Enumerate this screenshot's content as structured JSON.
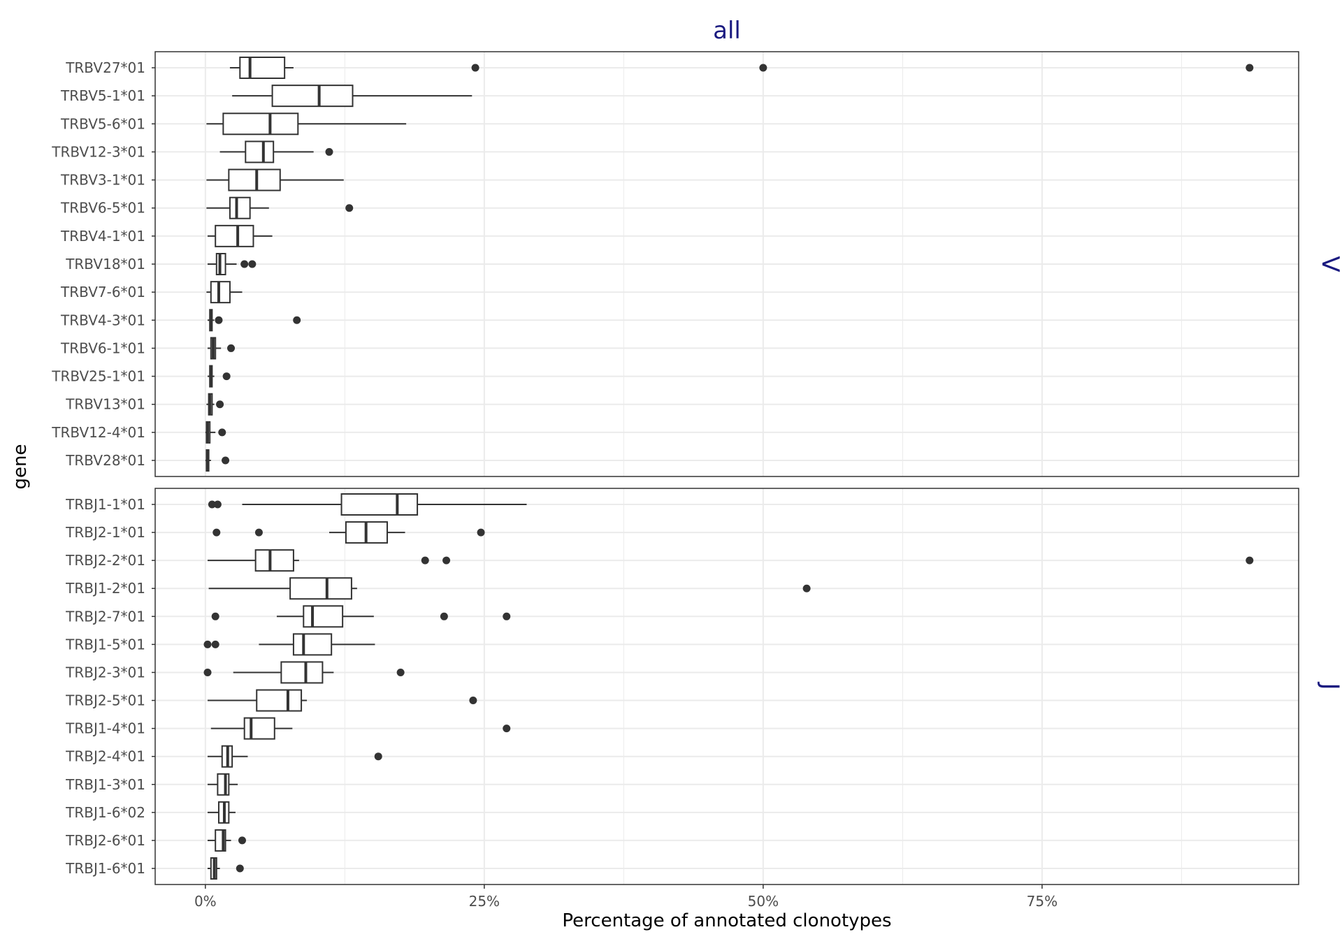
{
  "chart_data": {
    "type": "boxplot",
    "title": "all",
    "xlabel": "Percentage of annotated clonotypes",
    "ylabel": "gene",
    "xlim": [
      -4.5,
      98
    ],
    "x_ticks": [
      0,
      25,
      50,
      75
    ],
    "x_tick_labels": [
      "0%",
      "25%",
      "50%",
      "75%"
    ],
    "x_minor_ticks": [
      12.5,
      37.5,
      62.5,
      87.5
    ],
    "grid": true,
    "colors": {
      "box_stroke": "#333333",
      "grid": "#ebebeb",
      "panel_border": "#333333",
      "strip_text": "#1a1a80",
      "tick_text": "#4d4d4d"
    },
    "panels": [
      {
        "name": "V",
        "strip_label": "V",
        "genes": [
          {
            "gene": "TRBV27*01",
            "min": 2.2,
            "q1": 3.1,
            "median": 4.0,
            "q3": 7.1,
            "max": 7.9,
            "outliers": [
              24.2,
              50.0,
              93.6
            ]
          },
          {
            "gene": "TRBV5-1*01",
            "min": 2.4,
            "q1": 6.0,
            "median": 10.2,
            "q3": 13.2,
            "max": 23.9,
            "outliers": []
          },
          {
            "gene": "TRBV5-6*01",
            "min": 0.1,
            "q1": 1.6,
            "median": 5.8,
            "q3": 8.3,
            "max": 18.0,
            "outliers": []
          },
          {
            "gene": "TRBV12-3*01",
            "min": 1.3,
            "q1": 3.6,
            "median": 5.2,
            "q3": 6.1,
            "max": 9.7,
            "outliers": [
              11.1
            ]
          },
          {
            "gene": "TRBV3-1*01",
            "min": 0.1,
            "q1": 2.1,
            "median": 4.6,
            "q3": 6.7,
            "max": 12.4,
            "outliers": []
          },
          {
            "gene": "TRBV6-5*01",
            "min": 0.1,
            "q1": 2.2,
            "median": 2.8,
            "q3": 4.0,
            "max": 5.7,
            "outliers": [
              12.9
            ]
          },
          {
            "gene": "TRBV4-1*01",
            "min": 0.2,
            "q1": 0.9,
            "median": 2.9,
            "q3": 4.3,
            "max": 6.0,
            "outliers": []
          },
          {
            "gene": "TRBV18*01",
            "min": 0.2,
            "q1": 1.0,
            "median": 1.3,
            "q3": 1.8,
            "max": 2.8,
            "outliers": [
              3.5,
              4.2
            ]
          },
          {
            "gene": "TRBV7-6*01",
            "min": 0.1,
            "q1": 0.5,
            "median": 1.2,
            "q3": 2.2,
            "max": 3.3,
            "outliers": []
          },
          {
            "gene": "TRBV4-3*01",
            "min": 0.2,
            "q1": 0.4,
            "median": 0.5,
            "q3": 0.6,
            "max": 0.8,
            "outliers": [
              1.2,
              8.2
            ]
          },
          {
            "gene": "TRBV6-1*01",
            "min": 0.2,
            "q1": 0.5,
            "median": 0.7,
            "q3": 0.9,
            "max": 1.4,
            "outliers": [
              2.3
            ]
          },
          {
            "gene": "TRBV25-1*01",
            "min": 0.2,
            "q1": 0.4,
            "median": 0.5,
            "q3": 0.6,
            "max": 0.8,
            "outliers": [
              1.9
            ]
          },
          {
            "gene": "TRBV13*01",
            "min": 0.1,
            "q1": 0.3,
            "median": 0.4,
            "q3": 0.6,
            "max": 0.8,
            "outliers": [
              1.3
            ]
          },
          {
            "gene": "TRBV12-4*01",
            "min": 0.0,
            "q1": 0.1,
            "median": 0.2,
            "q3": 0.4,
            "max": 0.9,
            "outliers": [
              1.5
            ]
          },
          {
            "gene": "TRBV28*01",
            "min": 0.0,
            "q1": 0.1,
            "median": 0.2,
            "q3": 0.3,
            "max": 0.5,
            "outliers": [
              1.8
            ]
          }
        ]
      },
      {
        "name": "J",
        "strip_label": "J",
        "genes": [
          {
            "gene": "TRBJ1-1*01",
            "min": 3.3,
            "q1": 12.2,
            "median": 17.2,
            "q3": 19.0,
            "max": 28.8,
            "outliers": [
              0.6,
              1.1
            ]
          },
          {
            "gene": "TRBJ2-1*01",
            "min": 11.1,
            "q1": 12.6,
            "median": 14.4,
            "q3": 16.3,
            "max": 17.9,
            "outliers": [
              1.0,
              4.8,
              24.7
            ]
          },
          {
            "gene": "TRBJ2-2*01",
            "min": 0.2,
            "q1": 4.5,
            "median": 5.8,
            "q3": 7.9,
            "max": 8.4,
            "outliers": [
              19.7,
              21.6,
              93.6
            ]
          },
          {
            "gene": "TRBJ1-2*01",
            "min": 0.3,
            "q1": 7.6,
            "median": 10.9,
            "q3": 13.1,
            "max": 13.6,
            "outliers": [
              53.9
            ]
          },
          {
            "gene": "TRBJ2-7*01",
            "min": 6.4,
            "q1": 8.8,
            "median": 9.6,
            "q3": 12.3,
            "max": 15.1,
            "outliers": [
              0.9,
              21.4,
              27.0
            ]
          },
          {
            "gene": "TRBJ1-5*01",
            "min": 4.8,
            "q1": 7.9,
            "median": 8.8,
            "q3": 11.3,
            "max": 15.2,
            "outliers": [
              0.2,
              0.9
            ]
          },
          {
            "gene": "TRBJ2-3*01",
            "min": 2.5,
            "q1": 6.8,
            "median": 9.0,
            "q3": 10.5,
            "max": 11.5,
            "outliers": [
              0.2,
              17.5
            ]
          },
          {
            "gene": "TRBJ2-5*01",
            "min": 0.2,
            "q1": 4.6,
            "median": 7.4,
            "q3": 8.6,
            "max": 9.1,
            "outliers": [
              24.0
            ]
          },
          {
            "gene": "TRBJ1-4*01",
            "min": 0.5,
            "q1": 3.5,
            "median": 4.1,
            "q3": 6.2,
            "max": 7.8,
            "outliers": [
              27.0
            ]
          },
          {
            "gene": "TRBJ2-4*01",
            "min": 0.2,
            "q1": 1.5,
            "median": 2.0,
            "q3": 2.4,
            "max": 3.8,
            "outliers": [
              15.5
            ]
          },
          {
            "gene": "TRBJ1-3*01",
            "min": 0.2,
            "q1": 1.1,
            "median": 1.8,
            "q3": 2.1,
            "max": 2.9,
            "outliers": []
          },
          {
            "gene": "TRBJ1-6*02",
            "min": 0.2,
            "q1": 1.2,
            "median": 1.7,
            "q3": 2.1,
            "max": 2.7,
            "outliers": []
          },
          {
            "gene": "TRBJ2-6*01",
            "min": 0.2,
            "q1": 0.9,
            "median": 1.6,
            "q3": 1.8,
            "max": 2.3,
            "outliers": [
              3.3
            ]
          },
          {
            "gene": "TRBJ1-6*01",
            "min": 0.2,
            "q1": 0.5,
            "median": 0.8,
            "q3": 1.0,
            "max": 1.3,
            "outliers": [
              3.1
            ]
          }
        ]
      }
    ]
  }
}
